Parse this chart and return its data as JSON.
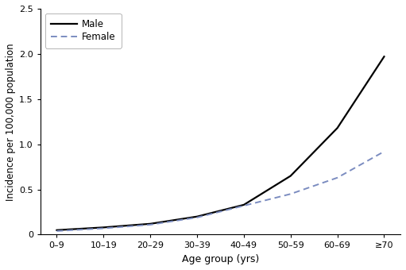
{
  "age_groups": [
    "0–9",
    "10–19",
    "20–29",
    "30–39",
    "40–49",
    "50–59",
    "60–69",
    "≥70"
  ],
  "male_values": [
    0.05,
    0.08,
    0.12,
    0.2,
    0.33,
    0.65,
    1.18,
    1.97
  ],
  "female_values": [
    0.04,
    0.07,
    0.11,
    0.19,
    0.32,
    0.45,
    0.63,
    0.92
  ],
  "male_color": "#000000",
  "female_color": "#7b8cc0",
  "xlabel": "Age group (yrs)",
  "ylabel": "Incidence per 100,000 population",
  "ylim": [
    0,
    2.5
  ],
  "yticks": [
    0,
    0.5,
    1.0,
    1.5,
    2.0,
    2.5
  ],
  "ytick_labels": [
    "0",
    "0.5",
    "1.0",
    "1.5",
    "2.0",
    "2.5"
  ],
  "legend_male": "Male",
  "legend_female": "Female",
  "background_color": "#ffffff"
}
